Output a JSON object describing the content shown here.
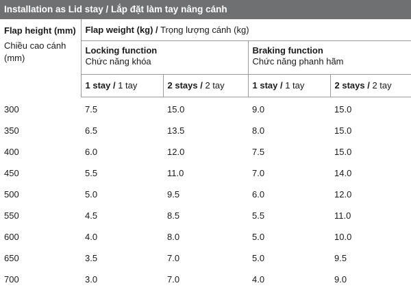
{
  "title": "Installation as Lid stay / Lắp đặt làm tay nâng cánh",
  "header": {
    "flap_height_bold": "Flap height (mm)",
    "flap_height_normal": "Chiều cao cánh (mm)",
    "flap_weight_bold": "Flap weight (kg) /",
    "flap_weight_normal": "Trọng lượng cánh (kg)",
    "locking_bold": "Locking function",
    "locking_normal": "Chức năng khóa",
    "braking_bold": "Braking function",
    "braking_normal": "Chức năng phanh hãm",
    "stays": [
      {
        "bold": "1 stay /",
        "normal": "1 tay"
      },
      {
        "bold": "2 stays /",
        "normal": "2 tay"
      },
      {
        "bold": "1 stay /",
        "normal": "1 tay"
      },
      {
        "bold": "2 stays /",
        "normal": "2 tay"
      }
    ]
  },
  "rows": [
    [
      "300",
      "7.5",
      "15.0",
      "9.0",
      "15.0"
    ],
    [
      "350",
      "6.5",
      "13.5",
      "8.0",
      "15.0"
    ],
    [
      "400",
      "6.0",
      "12.0",
      "7.5",
      "15.0"
    ],
    [
      "450",
      "5.5",
      "11.0",
      "7.0",
      "14.0"
    ],
    [
      "500",
      "5.0",
      "9.5",
      "6.0",
      "12.0"
    ],
    [
      "550",
      "4.5",
      "8.5",
      "5.5",
      "11.0"
    ],
    [
      "600",
      "4.0",
      "8.0",
      "5.0",
      "10.0"
    ],
    [
      "650",
      "3.5",
      "7.0",
      "5.0",
      "9.5"
    ],
    [
      "700",
      "3.0",
      "7.0",
      "4.0",
      "9.0"
    ]
  ]
}
